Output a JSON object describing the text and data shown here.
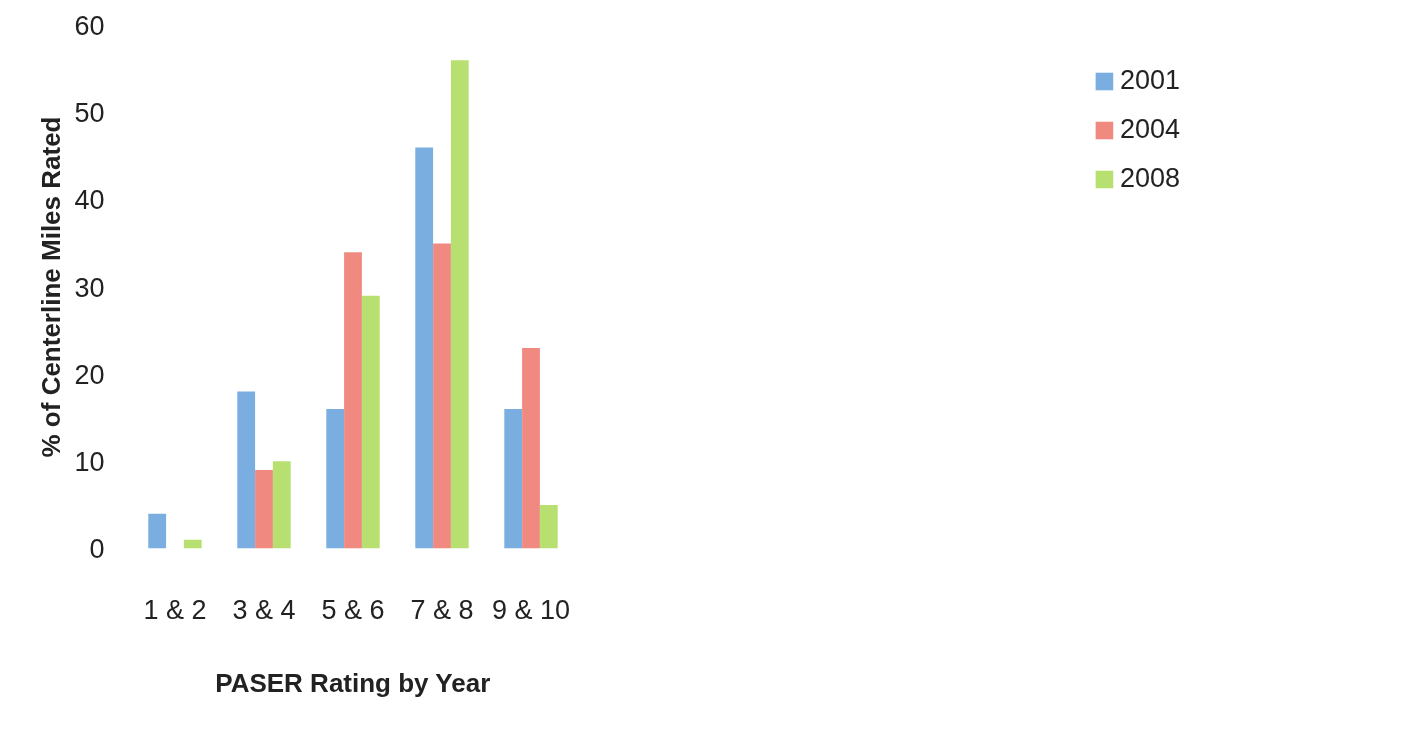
{
  "chart_data": {
    "type": "bar",
    "xlabel": "PASER Rating by Year",
    "ylabel": "% of Centerline Miles Rated",
    "categories": [
      "1 & 2",
      "3 & 4",
      "5 & 6",
      "7 & 8",
      "9 & 10"
    ],
    "series": [
      {
        "name": "2001",
        "color": "#7aaee0",
        "values": [
          4,
          18,
          16,
          46,
          16
        ]
      },
      {
        "name": "2004",
        "color": "#f08a80",
        "values": [
          0,
          9,
          34,
          35,
          23
        ]
      },
      {
        "name": "2008",
        "color": "#b8e070",
        "values": [
          1,
          10,
          29,
          56,
          5
        ]
      }
    ],
    "ylim": [
      0,
      60
    ],
    "yticks": [
      0,
      10,
      20,
      30,
      40,
      50,
      60
    ],
    "grid": false,
    "legend": "right"
  }
}
